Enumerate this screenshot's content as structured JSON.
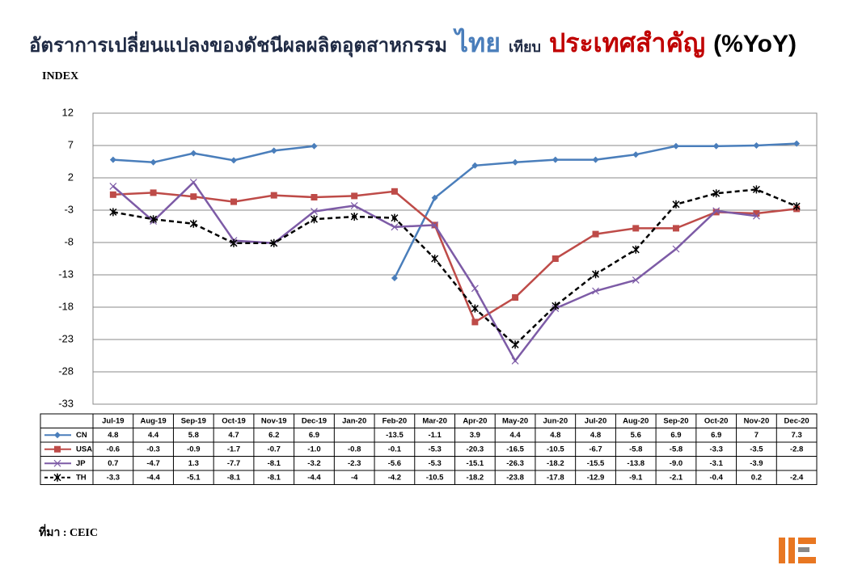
{
  "chart_data": {
    "type": "line",
    "title_parts": [
      "อัตราการเปลี่ยนแปลงของดัชนีผลผลิตอุตสาหกรรม",
      "ไทย",
      "เทียบ",
      "ประเทศสำคัญ",
      "(%YoY)"
    ],
    "y_label": "INDEX",
    "source": "ที่มา : CEIC",
    "categories": [
      "Jul-19",
      "Aug-19",
      "Sep-19",
      "Oct-19",
      "Nov-19",
      "Dec-19",
      "Jan-20",
      "Feb-20",
      "Mar-20",
      "Apr-20",
      "May-20",
      "Jun-20",
      "Jul-20",
      "Aug-20",
      "Sep-20",
      "Oct-20",
      "Nov-20",
      "Dec-20"
    ],
    "ylim": [
      -33,
      12
    ],
    "yticks": [
      -33,
      -28,
      -23,
      -18,
      -13,
      -8,
      -3,
      2,
      7,
      12
    ],
    "grid": true,
    "series": [
      {
        "name": "CN",
        "color": "#4a7ebb",
        "marker": "diamond",
        "dashed": false,
        "values": [
          4.8,
          4.4,
          5.8,
          4.7,
          6.2,
          6.9,
          null,
          -13.5,
          -1.1,
          3.9,
          4.4,
          4.8,
          4.8,
          5.6,
          6.9,
          6.9,
          7,
          7.3
        ],
        "value_labels": [
          "4.8",
          "4.4",
          "5.8",
          "4.7",
          "6.2",
          "6.9",
          null,
          "-13.5",
          "-1.1",
          "3.9",
          "4.4",
          "4.8",
          "4.8",
          "5.6",
          "6.9",
          "6.9",
          "7",
          "7.3"
        ]
      },
      {
        "name": "USA",
        "color": "#be4b48",
        "marker": "square",
        "dashed": false,
        "values": [
          -0.6,
          -0.3,
          -0.9,
          -1.7,
          -0.7,
          -1.0,
          -0.8,
          -0.1,
          -5.3,
          -20.3,
          -16.5,
          -10.5,
          -6.7,
          -5.8,
          -5.8,
          -3.3,
          -3.5,
          -2.8
        ],
        "value_labels": [
          "-0.6",
          "-0.3",
          "-0.9",
          "-1.7",
          "-0.7",
          "-1.0",
          "-0.8",
          "-0.1",
          "-5.3",
          "-20.3",
          "-16.5",
          "-10.5",
          "-6.7",
          "-5.8",
          "-5.8",
          "-3.3",
          "-3.5",
          "-2.8"
        ]
      },
      {
        "name": "JP",
        "color": "#7d5ba6",
        "marker": "cross",
        "dashed": false,
        "values": [
          0.7,
          -4.7,
          1.3,
          -7.7,
          -8.1,
          -3.2,
          -2.3,
          -5.6,
          -5.3,
          -15.1,
          -26.3,
          -18.2,
          -15.5,
          -13.8,
          -9.0,
          -3.1,
          -3.9,
          null
        ],
        "value_labels": [
          "0.7",
          "-4.7",
          "1.3",
          "-7.7",
          "-8.1",
          "-3.2",
          "-2.3",
          "-5.6",
          "-5.3",
          "-15.1",
          "-26.3",
          "-18.2",
          "-15.5",
          "-13.8",
          "-9.0",
          "-3.1",
          "-3.9",
          null
        ]
      },
      {
        "name": "TH",
        "color": "#000000",
        "marker": "star",
        "dashed": true,
        "values": [
          -3.3,
          -4.4,
          -5.1,
          -8.1,
          -8.1,
          -4.4,
          -4,
          -4.2,
          -10.5,
          -18.2,
          -23.8,
          -17.8,
          -12.9,
          -9.1,
          -2.1,
          -0.4,
          0.2,
          -2.4
        ],
        "value_labels": [
          "-3.3",
          "-4.4",
          "-5.1",
          "-8.1",
          "-8.1",
          "-4.4",
          "-4",
          "-4.2",
          "-10.5",
          "-18.2",
          "-23.8",
          "-17.8",
          "-12.9",
          "-9.1",
          "-2.1",
          "-0.4",
          "0.2",
          "-2.4"
        ]
      }
    ]
  }
}
